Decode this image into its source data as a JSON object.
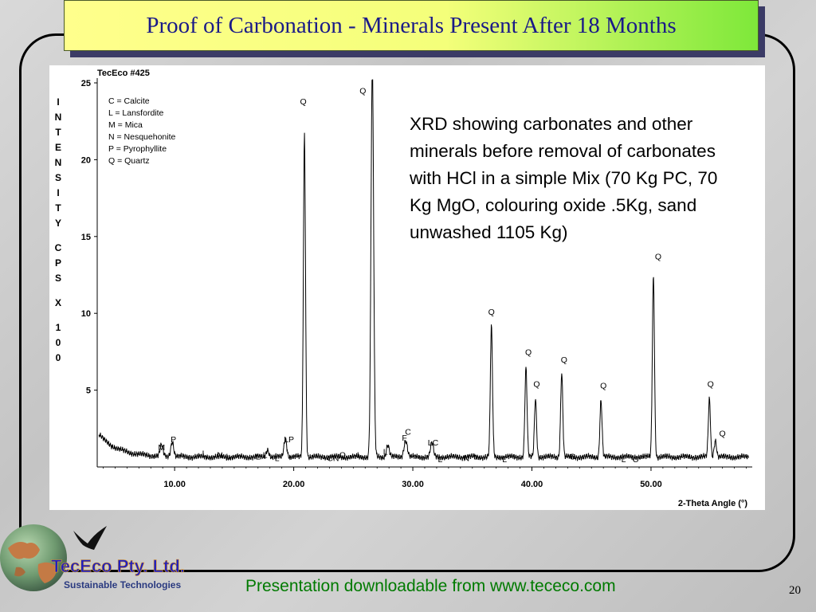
{
  "slide": {
    "title": "Proof of Carbonation - Minerals Present After 18 Months",
    "annotation": "XRD showing carbonates and other minerals before removal of carbonates with HCl in a simple Mix (70 Kg PC, 70 Kg MgO, colouring oxide .5Kg, sand unwashed 1105 Kg)",
    "footer": "Presentation downloadable from www.tececo.com",
    "slide_number": "20"
  },
  "logo": {
    "company": "TecEco Pty. Ltd.",
    "tagline": "Sustainable Technologies",
    "icons": [
      "globe-icon",
      "bird-icon"
    ]
  },
  "chart_data": {
    "type": "line",
    "sample": "TecEco #425",
    "xlabel": "2-Theta Angle (°)",
    "ylabel_letters": [
      "I",
      "N",
      "T",
      "E",
      "N",
      "S",
      "I",
      "T",
      "Y",
      "C",
      "P",
      "S",
      "X",
      "1",
      "0",
      "0"
    ],
    "xlim": [
      3.5,
      58.5
    ],
    "ylim": [
      0,
      25
    ],
    "x_ticks": [
      10,
      20,
      30,
      40,
      50
    ],
    "x_tick_labels": [
      "10.00",
      "20.00",
      "30.00",
      "40.00",
      "50.00"
    ],
    "y_ticks": [
      5,
      10,
      15,
      20,
      25
    ],
    "y_tick_labels": [
      "5",
      "10",
      "15",
      "20",
      "25"
    ],
    "legend": [
      "C = Calcite",
      "L = Lansfordite",
      "M = Mica",
      "N = Nesquehonite",
      "P = Pyrophyllite",
      "Q = Quartz"
    ],
    "legend_position": "top-left",
    "peaks": [
      {
        "x": 8.9,
        "y": 0.7,
        "w": 0.12
      },
      {
        "x": 9.8,
        "y": 1.0,
        "w": 0.12
      },
      {
        "x": 17.8,
        "y": 0.5,
        "w": 0.12
      },
      {
        "x": 19.3,
        "y": 1.2,
        "w": 0.12
      },
      {
        "x": 20.9,
        "y": 21.0,
        "w": 0.09
      },
      {
        "x": 26.6,
        "y": 25.5,
        "w": 0.11
      },
      {
        "x": 27.9,
        "y": 0.8,
        "w": 0.12
      },
      {
        "x": 29.4,
        "y": 1.1,
        "w": 0.14
      },
      {
        "x": 31.6,
        "y": 0.9,
        "w": 0.12
      },
      {
        "x": 36.6,
        "y": 8.5,
        "w": 0.09
      },
      {
        "x": 39.5,
        "y": 5.8,
        "w": 0.09
      },
      {
        "x": 40.3,
        "y": 3.8,
        "w": 0.09
      },
      {
        "x": 42.5,
        "y": 5.5,
        "w": 0.09
      },
      {
        "x": 45.8,
        "y": 3.7,
        "w": 0.09
      },
      {
        "x": 50.2,
        "y": 11.8,
        "w": 0.09
      },
      {
        "x": 54.9,
        "y": 3.8,
        "w": 0.09
      },
      {
        "x": 55.4,
        "y": 1.1,
        "w": 0.1
      }
    ],
    "peak_labels": [
      {
        "text": "M",
        "x": 8.9,
        "y": 1.1
      },
      {
        "text": "P",
        "x": 9.9,
        "y": 1.6
      },
      {
        "text": "L",
        "x": 12.5,
        "y": 0.7
      },
      {
        "text": "N",
        "x": 13.8,
        "y": 0.6
      },
      {
        "text": "L",
        "x": 14.5,
        "y": 0.5
      },
      {
        "text": "L",
        "x": 17.0,
        "y": 0.5
      },
      {
        "text": "L",
        "x": 17.6,
        "y": 0.6
      },
      {
        "text": "L",
        "x": 18.6,
        "y": 0.4
      },
      {
        "text": "LP",
        "x": 19.6,
        "y": 1.6
      },
      {
        "text": "Q",
        "x": 20.8,
        "y": 23.6
      },
      {
        "text": "CN",
        "x": 23.3,
        "y": 0.4
      },
      {
        "text": "Q",
        "x": 24.1,
        "y": 0.6
      },
      {
        "text": "L",
        "x": 25.5,
        "y": 0.6
      },
      {
        "text": "Q",
        "x": 25.8,
        "y": 24.3
      },
      {
        "text": "L",
        "x": 27.7,
        "y": 0.8
      },
      {
        "text": "F",
        "x": 29.3,
        "y": 1.7
      },
      {
        "text": "C",
        "x": 29.6,
        "y": 2.1
      },
      {
        "text": "LC",
        "x": 31.7,
        "y": 1.4
      },
      {
        "text": "L",
        "x": 32.3,
        "y": 0.3
      },
      {
        "text": "N",
        "x": 34.5,
        "y": 0.4
      },
      {
        "text": "L",
        "x": 35.3,
        "y": 0.5
      },
      {
        "text": "L",
        "x": 37.7,
        "y": 0.3
      },
      {
        "text": "Q",
        "x": 36.6,
        "y": 9.9
      },
      {
        "text": "Q",
        "x": 39.7,
        "y": 7.3
      },
      {
        "text": "Q",
        "x": 40.4,
        "y": 5.2
      },
      {
        "text": "Q",
        "x": 42.7,
        "y": 6.8
      },
      {
        "text": "C",
        "x": 43.4,
        "y": 0.5
      },
      {
        "text": "Q",
        "x": 46.0,
        "y": 5.1
      },
      {
        "text": "L",
        "x": 47.7,
        "y": 0.3
      },
      {
        "text": "C",
        "x": 48.7,
        "y": 0.3
      },
      {
        "text": "Q",
        "x": 50.6,
        "y": 13.5
      },
      {
        "text": "Q",
        "x": 55.0,
        "y": 5.2
      },
      {
        "text": "Q",
        "x": 56.0,
        "y": 2.0
      }
    ]
  }
}
